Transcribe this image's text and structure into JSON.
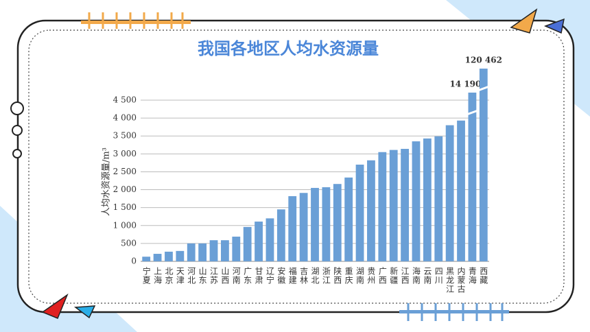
{
  "chart_data": {
    "type": "bar",
    "title": "我国各地区人均水资源量",
    "ylabel": "人均水资源量/m³",
    "categories": [
      "宁夏",
      "上海",
      "北京",
      "天津",
      "河北",
      "山东",
      "江苏",
      "山西",
      "河南",
      "广东",
      "甘肃",
      "辽宁",
      "安徽",
      "福建",
      "吉林",
      "湖北",
      "浙江",
      "陕西",
      "重庆",
      "湖南",
      "贵州",
      "广西",
      "新疆",
      "江西",
      "海南",
      "云南",
      "四川",
      "黑龙江",
      "内蒙古",
      "青海",
      "西藏"
    ],
    "values": [
      130,
      210,
      270,
      290,
      500,
      500,
      590,
      590,
      690,
      960,
      1110,
      1200,
      1450,
      1820,
      1910,
      2050,
      2070,
      2160,
      2340,
      2700,
      2820,
      3050,
      3110,
      3140,
      3350,
      3430,
      3490,
      3800,
      3930,
      14190,
      120462
    ],
    "value_labels": [
      null,
      null,
      null,
      null,
      null,
      null,
      null,
      null,
      null,
      null,
      null,
      null,
      null,
      null,
      null,
      null,
      null,
      null,
      null,
      null,
      null,
      null,
      null,
      null,
      null,
      null,
      null,
      null,
      null,
      "14 190",
      "120 462"
    ],
    "color": "#6a9fd6",
    "ylim": [
      0,
      4500
    ],
    "yticks": [
      0,
      500,
      {
        "value": 1000,
        "label": "1 000"
      },
      {
        "value": 1500,
        "label": "1 500"
      },
      {
        "value": 2000,
        "label": "2 000"
      },
      {
        "value": 2500,
        "label": "2 500"
      },
      {
        "value": 3000,
        "label": "3 000"
      },
      {
        "value": 3500,
        "label": "3 500"
      },
      {
        "value": 4000,
        "label": "4 000"
      },
      {
        "value": 4500,
        "label": "4 500"
      }
    ],
    "grid": true
  }
}
